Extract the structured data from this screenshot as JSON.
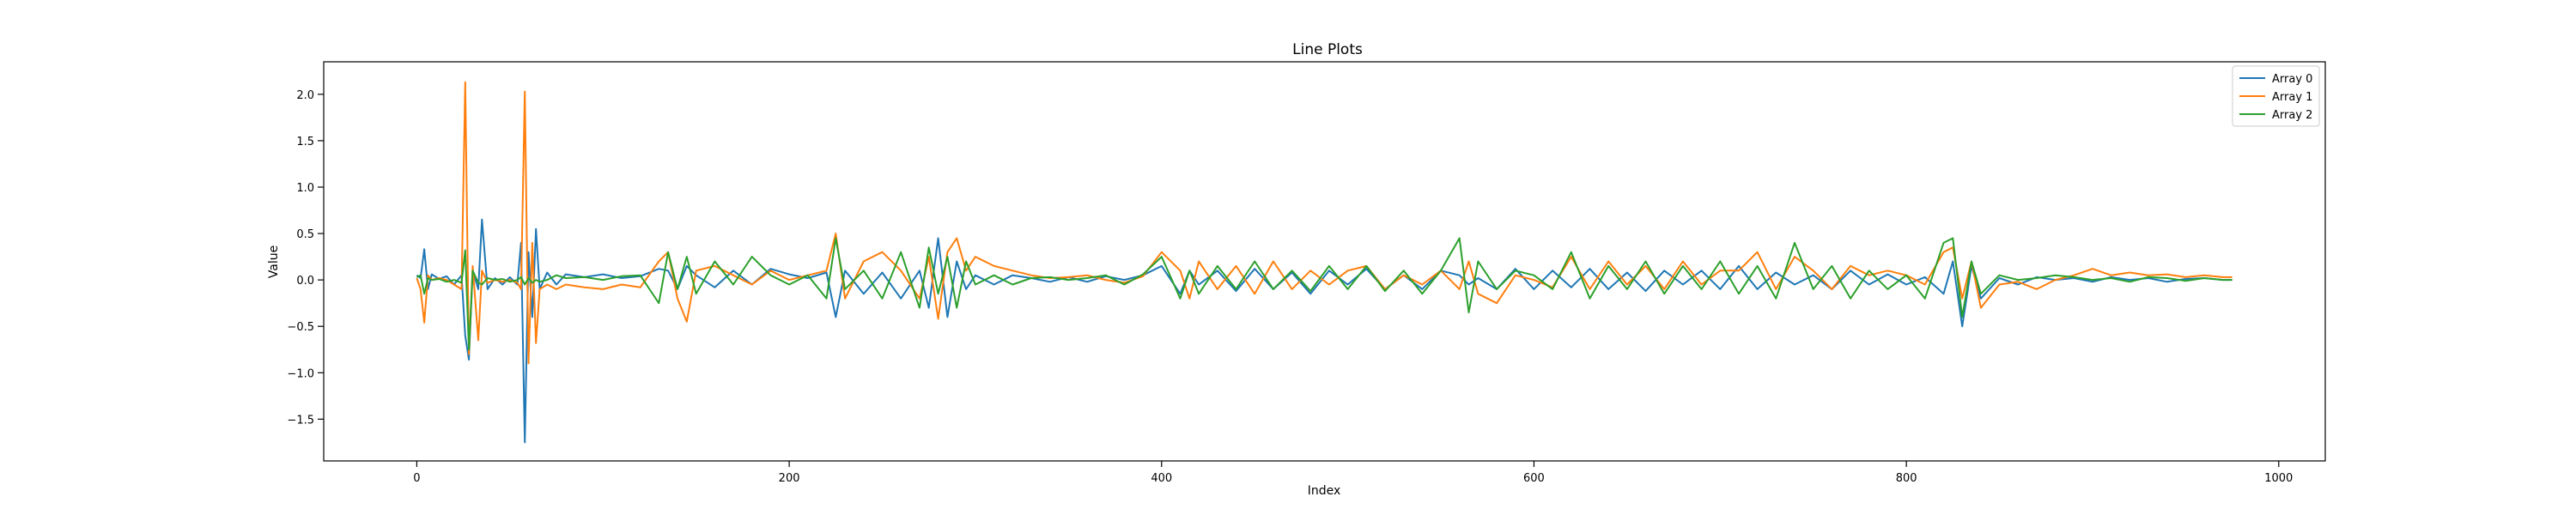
{
  "chart_data": {
    "type": "line",
    "title": "Line Plots",
    "xlabel": "Index",
    "ylabel": "Value",
    "xlim": [
      -50,
      1025
    ],
    "ylim": [
      -1.95,
      2.35
    ],
    "xticks": [
      0,
      200,
      400,
      600,
      800,
      1000
    ],
    "yticks": [
      -1.5,
      -1.0,
      -0.5,
      0.0,
      0.5,
      1.0,
      1.5,
      2.0
    ],
    "xtick_labels": [
      "0",
      "200",
      "400",
      "600",
      "800",
      "1000"
    ],
    "ytick_labels": [
      "−1.5",
      "−1.0",
      "−0.5",
      "0.0",
      "0.5",
      "1.0",
      "1.5",
      "2.0"
    ],
    "grid": false,
    "legend_position": "top-right",
    "series": [
      {
        "name": "Array 0",
        "color": "#1f77b4",
        "x": [
          0,
          2,
          4,
          6,
          8,
          12,
          16,
          20,
          24,
          26,
          28,
          30,
          33,
          35,
          38,
          42,
          46,
          50,
          54,
          56,
          58,
          60,
          62,
          64,
          66,
          70,
          75,
          80,
          90,
          100,
          110,
          120,
          130,
          135,
          140,
          145,
          150,
          160,
          170,
          180,
          190,
          200,
          210,
          220,
          225,
          230,
          240,
          250,
          260,
          270,
          275,
          280,
          285,
          290,
          295,
          300,
          310,
          320,
          330,
          340,
          350,
          360,
          370,
          380,
          390,
          400,
          410,
          415,
          420,
          430,
          440,
          450,
          460,
          470,
          480,
          490,
          500,
          510,
          520,
          530,
          540,
          550,
          560,
          565,
          570,
          580,
          590,
          600,
          610,
          620,
          630,
          640,
          650,
          660,
          670,
          680,
          690,
          700,
          710,
          720,
          730,
          740,
          750,
          760,
          770,
          780,
          790,
          800,
          810,
          820,
          825,
          830,
          835,
          840,
          850,
          860,
          870,
          880,
          890,
          900,
          910,
          920,
          930,
          940,
          950,
          960,
          970,
          975
        ],
        "y": [
          0.05,
          0.02,
          0.33,
          -0.1,
          0.06,
          0.01,
          0.04,
          -0.05,
          0.05,
          -0.6,
          -0.86,
          0.1,
          -0.1,
          0.65,
          -0.1,
          0.02,
          -0.05,
          0.03,
          -0.05,
          0.4,
          -1.75,
          0.3,
          -0.4,
          0.55,
          -0.1,
          0.08,
          -0.05,
          0.06,
          0.03,
          0.06,
          0.02,
          0.04,
          0.12,
          0.1,
          -0.1,
          0.15,
          0.05,
          -0.08,
          0.1,
          -0.05,
          0.12,
          0.06,
          0.02,
          0.08,
          -0.4,
          0.1,
          -0.15,
          0.08,
          -0.2,
          0.1,
          -0.3,
          0.45,
          -0.4,
          0.2,
          -0.1,
          0.05,
          -0.05,
          0.05,
          0.02,
          -0.02,
          0.03,
          -0.02,
          0.04,
          0.0,
          0.05,
          0.15,
          -0.15,
          0.1,
          -0.05,
          0.1,
          -0.12,
          0.12,
          -0.1,
          0.08,
          -0.15,
          0.1,
          -0.05,
          0.12,
          -0.1,
          0.05,
          -0.1,
          0.1,
          0.05,
          -0.05,
          0.02,
          -0.1,
          0.12,
          -0.1,
          0.1,
          -0.08,
          0.12,
          -0.1,
          0.08,
          -0.12,
          0.1,
          -0.05,
          0.1,
          -0.1,
          0.15,
          -0.1,
          0.08,
          -0.05,
          0.05,
          -0.1,
          0.1,
          -0.05,
          0.06,
          -0.05,
          0.03,
          -0.15,
          0.2,
          -0.5,
          0.15,
          -0.2,
          0.02,
          -0.05,
          0.03,
          0.0,
          0.02,
          -0.02,
          0.03,
          0.0,
          0.02,
          -0.02,
          0.01,
          0.02,
          0.0,
          0.0
        ]
      },
      {
        "name": "Array 1",
        "color": "#ff7f0e",
        "x": [
          0,
          2,
          4,
          6,
          8,
          12,
          16,
          20,
          24,
          26,
          28,
          30,
          33,
          35,
          38,
          42,
          46,
          50,
          54,
          56,
          58,
          60,
          62,
          64,
          66,
          70,
          75,
          80,
          90,
          100,
          110,
          120,
          130,
          135,
          140,
          145,
          150,
          160,
          170,
          180,
          190,
          200,
          210,
          220,
          225,
          230,
          240,
          250,
          260,
          270,
          275,
          280,
          285,
          290,
          295,
          300,
          310,
          320,
          330,
          340,
          350,
          360,
          370,
          380,
          390,
          400,
          410,
          415,
          420,
          430,
          440,
          450,
          460,
          470,
          480,
          490,
          500,
          510,
          520,
          530,
          540,
          550,
          560,
          565,
          570,
          580,
          590,
          600,
          610,
          620,
          630,
          640,
          650,
          660,
          670,
          680,
          690,
          700,
          710,
          720,
          730,
          740,
          750,
          760,
          770,
          780,
          790,
          800,
          810,
          820,
          825,
          830,
          835,
          840,
          850,
          860,
          870,
          880,
          890,
          900,
          910,
          920,
          930,
          940,
          950,
          960,
          970,
          975
        ],
        "y": [
          0.02,
          -0.1,
          -0.46,
          0.05,
          0.0,
          0.02,
          0.0,
          -0.05,
          -0.1,
          2.13,
          -0.8,
          0.15,
          -0.65,
          0.1,
          -0.03,
          0.0,
          -0.02,
          0.0,
          -0.03,
          -0.1,
          2.03,
          -0.9,
          0.4,
          -0.68,
          -0.1,
          -0.05,
          -0.1,
          -0.05,
          -0.08,
          -0.1,
          -0.05,
          -0.08,
          0.2,
          0.3,
          -0.2,
          -0.45,
          0.1,
          0.15,
          0.05,
          -0.05,
          0.1,
          0.0,
          0.05,
          0.1,
          0.5,
          -0.2,
          0.2,
          0.3,
          0.1,
          -0.2,
          0.25,
          -0.42,
          0.3,
          0.45,
          0.1,
          0.25,
          0.15,
          0.1,
          0.05,
          0.02,
          0.03,
          0.05,
          0.0,
          -0.03,
          0.04,
          0.3,
          0.1,
          -0.2,
          0.2,
          -0.1,
          0.15,
          -0.15,
          0.2,
          -0.1,
          0.1,
          -0.05,
          0.1,
          0.15,
          -0.1,
          0.05,
          -0.05,
          0.1,
          -0.1,
          0.2,
          -0.15,
          -0.25,
          0.05,
          0.0,
          -0.08,
          0.25,
          -0.1,
          0.2,
          -0.05,
          0.15,
          -0.1,
          0.2,
          -0.05,
          0.1,
          0.1,
          0.3,
          -0.1,
          0.25,
          0.1,
          -0.1,
          0.15,
          0.05,
          0.1,
          0.05,
          -0.05,
          0.3,
          0.35,
          -0.2,
          0.2,
          -0.3,
          -0.05,
          -0.02,
          -0.1,
          0.0,
          0.05,
          0.12,
          0.05,
          0.08,
          0.05,
          0.06,
          0.03,
          0.05,
          0.03,
          0.03
        ]
      },
      {
        "name": "Array 2",
        "color": "#2ca02c",
        "x": [
          0,
          2,
          4,
          6,
          8,
          12,
          16,
          20,
          24,
          26,
          28,
          30,
          33,
          35,
          38,
          42,
          46,
          50,
          54,
          56,
          58,
          60,
          62,
          64,
          66,
          70,
          75,
          80,
          90,
          100,
          110,
          120,
          130,
          135,
          140,
          145,
          150,
          160,
          170,
          180,
          190,
          200,
          210,
          220,
          225,
          230,
          240,
          250,
          260,
          270,
          275,
          280,
          285,
          290,
          295,
          300,
          310,
          320,
          330,
          340,
          350,
          360,
          370,
          380,
          390,
          400,
          410,
          415,
          420,
          430,
          440,
          450,
          460,
          470,
          480,
          490,
          500,
          510,
          520,
          530,
          540,
          550,
          560,
          565,
          570,
          580,
          590,
          600,
          610,
          620,
          630,
          640,
          650,
          660,
          670,
          680,
          690,
          700,
          710,
          720,
          730,
          740,
          750,
          760,
          770,
          780,
          790,
          800,
          810,
          820,
          825,
          830,
          835,
          840,
          850,
          860,
          870,
          880,
          890,
          900,
          910,
          920,
          930,
          940,
          950,
          960,
          970,
          975
        ],
        "y": [
          0.03,
          0.05,
          -0.15,
          0.02,
          0.0,
          0.01,
          -0.02,
          0.0,
          -0.03,
          0.32,
          -0.75,
          0.1,
          -0.03,
          -0.05,
          0.02,
          0.0,
          0.01,
          -0.02,
          0.0,
          0.03,
          -0.05,
          0.02,
          -0.03,
          0.0,
          -0.02,
          0.0,
          0.05,
          0.02,
          0.03,
          0.0,
          0.04,
          0.05,
          -0.25,
          0.3,
          -0.1,
          0.25,
          -0.15,
          0.2,
          -0.05,
          0.25,
          0.05,
          -0.05,
          0.05,
          -0.2,
          0.45,
          -0.1,
          0.1,
          -0.2,
          0.3,
          -0.3,
          0.35,
          -0.15,
          0.25,
          -0.3,
          0.2,
          -0.05,
          0.05,
          -0.05,
          0.02,
          0.03,
          0.0,
          0.02,
          0.05,
          -0.05,
          0.06,
          0.25,
          -0.2,
          0.1,
          -0.15,
          0.15,
          -0.1,
          0.2,
          -0.1,
          0.1,
          -0.12,
          0.15,
          -0.1,
          0.15,
          -0.12,
          0.1,
          -0.15,
          0.1,
          0.45,
          -0.35,
          0.2,
          -0.1,
          0.1,
          0.05,
          -0.1,
          0.3,
          -0.2,
          0.15,
          -0.1,
          0.2,
          -0.15,
          0.15,
          -0.1,
          0.2,
          -0.15,
          0.15,
          -0.2,
          0.4,
          -0.1,
          0.15,
          -0.2,
          0.1,
          -0.1,
          0.05,
          -0.2,
          0.4,
          0.45,
          -0.4,
          0.2,
          -0.15,
          0.05,
          0.0,
          0.02,
          0.05,
          0.03,
          0.0,
          0.02,
          -0.02,
          0.03,
          0.02,
          -0.01,
          0.02,
          0.0,
          0.0
        ]
      }
    ]
  }
}
